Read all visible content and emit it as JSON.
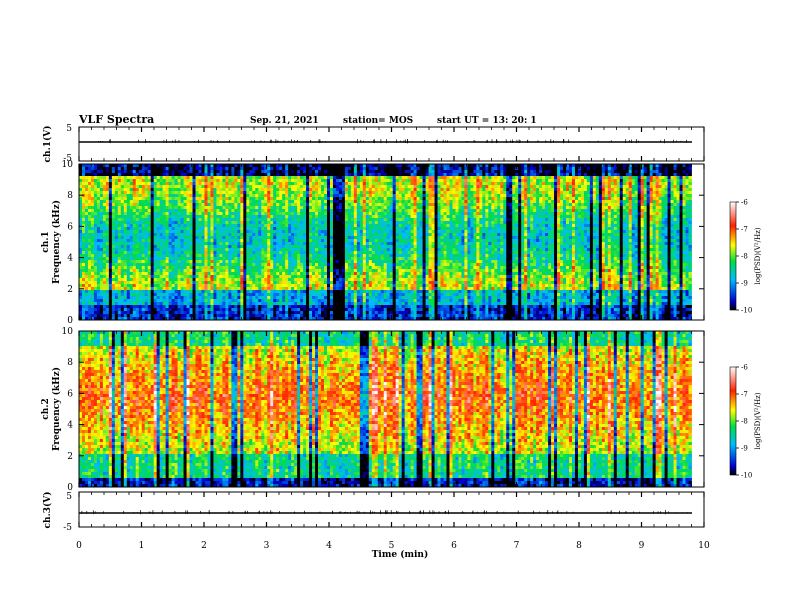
{
  "header": {
    "title": "VLF Spectra",
    "date": "Sep. 21, 2021",
    "station": "station= MOS",
    "start": "start  UT  =   13: 20: 1"
  },
  "chart_data": [
    {
      "type": "line",
      "name": "ch1-waveform",
      "ylabel": "ch.1(V)",
      "ylim": [
        -5,
        5
      ],
      "yticks": [
        "5",
        "-5"
      ],
      "xlim": [
        0,
        10
      ],
      "baseline": 0
    },
    {
      "type": "heatmap",
      "name": "ch1-spectrogram",
      "ylabel": "ch.1\nFrequency (kHz)",
      "ylim": [
        0,
        10
      ],
      "yticks": [
        "0",
        "2",
        "4",
        "6",
        "8",
        "10"
      ],
      "xlim": [
        0,
        10
      ],
      "data_end_min": 9.8,
      "colorbar": {
        "label": "log(PSD)(V²/Hz)",
        "range": [
          -10,
          -6
        ],
        "ticks": [
          "-6",
          "-7",
          "-8",
          "-9",
          "-10"
        ]
      }
    },
    {
      "type": "heatmap",
      "name": "ch2-spectrogram",
      "ylabel": "ch.2\nFrequency (kHz)",
      "ylim": [
        0,
        10
      ],
      "yticks": [
        "0",
        "2",
        "4",
        "6",
        "8",
        "10"
      ],
      "xlim": [
        0,
        10
      ],
      "data_end_min": 9.8,
      "colorbar": {
        "label": "log(PSD)(V²/Hz)",
        "range": [
          -10,
          -6
        ],
        "ticks": [
          "-6",
          "-7",
          "-8",
          "-9",
          "-10"
        ]
      }
    },
    {
      "type": "line",
      "name": "ch3-waveform",
      "ylabel": "ch.3(V)",
      "ylim": [
        -5,
        5
      ],
      "yticks": [
        "5",
        "-5"
      ],
      "xlim": [
        0,
        10
      ],
      "baseline": 0
    }
  ],
  "xaxis": {
    "label": "Time  (min)",
    "ticks": [
      "0",
      "1",
      "2",
      "3",
      "4",
      "5",
      "6",
      "7",
      "8",
      "9",
      "10"
    ]
  }
}
